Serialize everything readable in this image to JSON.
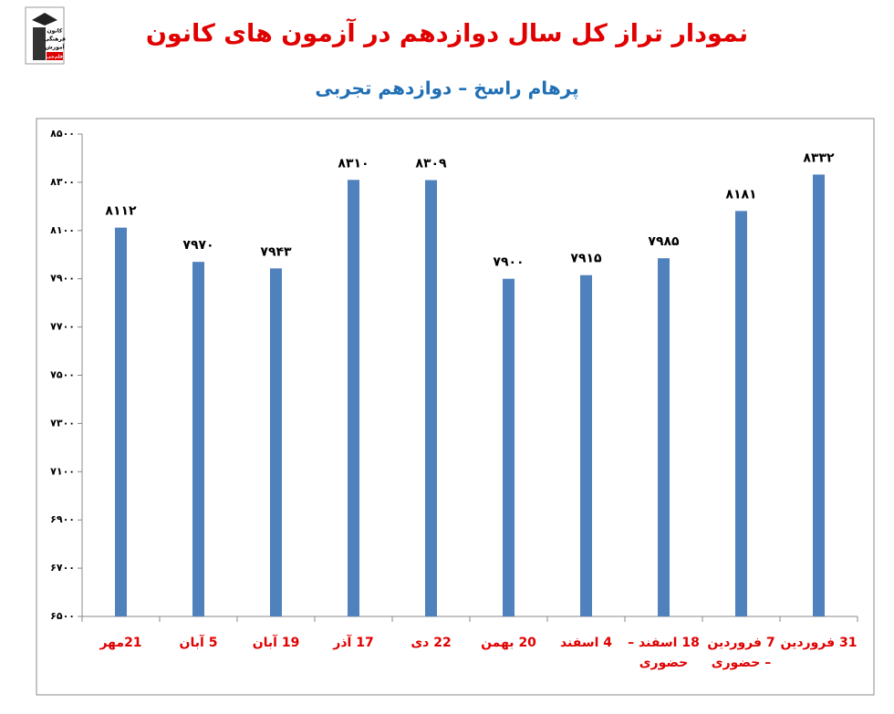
{
  "logo": {
    "lines": [
      "کانون",
      "فرهنگی",
      "آموزش",
      "قلم‌چی"
    ]
  },
  "chart_data": {
    "type": "bar",
    "title": "نمودار تراز کل سال دوازدهم در آزمون های کانون",
    "subtitle": "پرهام راسخ – دوازدهم تجربی",
    "categories": [
      "21مهر",
      "5 آبان",
      "19 آبان",
      "17 آذر",
      "22 دی",
      "20 بهمن",
      "4 اسفند",
      "18 اسفند – حضوری",
      "7 فروردین – حضوری",
      "31 فروردین"
    ],
    "values": [
      8112,
      7970,
      7943,
      8310,
      8309,
      7900,
      7915,
      7985,
      8181,
      8332
    ],
    "value_labels": [
      "۸۱۱۲",
      "۷۹۷۰",
      "۷۹۴۳",
      "۸۳۱۰",
      "۸۳۰۹",
      "۷۹۰۰",
      "۷۹۱۵",
      "۷۹۸۵",
      "۸۱۸۱",
      "۸۳۳۲"
    ],
    "color": "#4f81bd",
    "ylim": [
      6500,
      8500
    ],
    "yticks": [
      {
        "value": 6500,
        "label": "۶۵۰۰"
      },
      {
        "value": 6700,
        "label": "۶۷۰۰"
      },
      {
        "value": 6900,
        "label": "۶۹۰۰"
      },
      {
        "value": 7100,
        "label": "۷۱۰۰"
      },
      {
        "value": 7300,
        "label": "۷۳۰۰"
      },
      {
        "value": 7500,
        "label": "۷۵۰۰"
      },
      {
        "value": 7700,
        "label": "۷۷۰۰"
      },
      {
        "value": 7900,
        "label": "۷۹۰۰"
      },
      {
        "value": 8100,
        "label": "۸۱۰۰"
      },
      {
        "value": 8300,
        "label": "۸۳۰۰"
      },
      {
        "value": 8500,
        "label": "۸۵۰۰"
      }
    ],
    "grid": false
  }
}
